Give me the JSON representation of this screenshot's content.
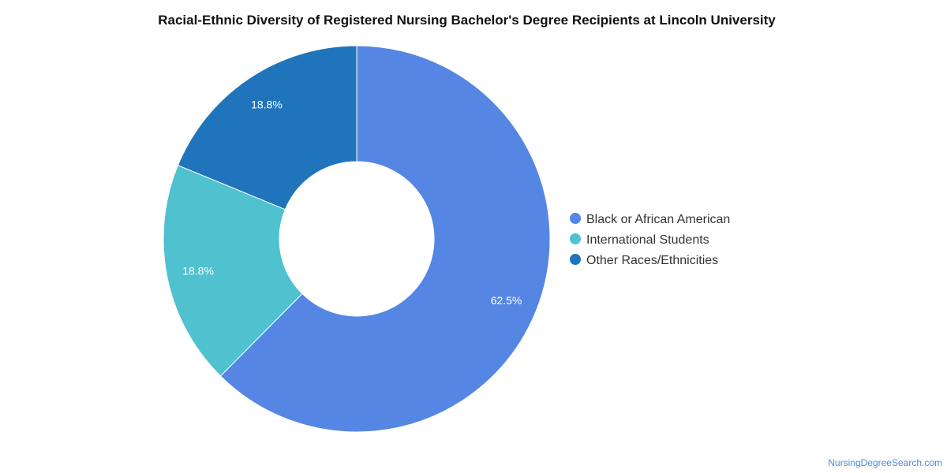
{
  "chart_data": {
    "type": "pie",
    "variant": "donut",
    "title": "Racial-Ethnic Diversity of Registered Nursing Bachelor's Degree Recipients at Lincoln University",
    "legend_position": "right",
    "slices": [
      {
        "label": "Black or African American",
        "value": 62.5,
        "value_label": "62.5%",
        "color": "#5586e3"
      },
      {
        "label": "International Students",
        "value": 18.8,
        "value_label": "18.8%",
        "color": "#4fc1cf"
      },
      {
        "label": "Other Races/Ethnicities",
        "value": 18.8,
        "value_label": "18.8%",
        "color": "#1f74bb"
      }
    ]
  },
  "watermark": "NursingDegreeSearch.com"
}
